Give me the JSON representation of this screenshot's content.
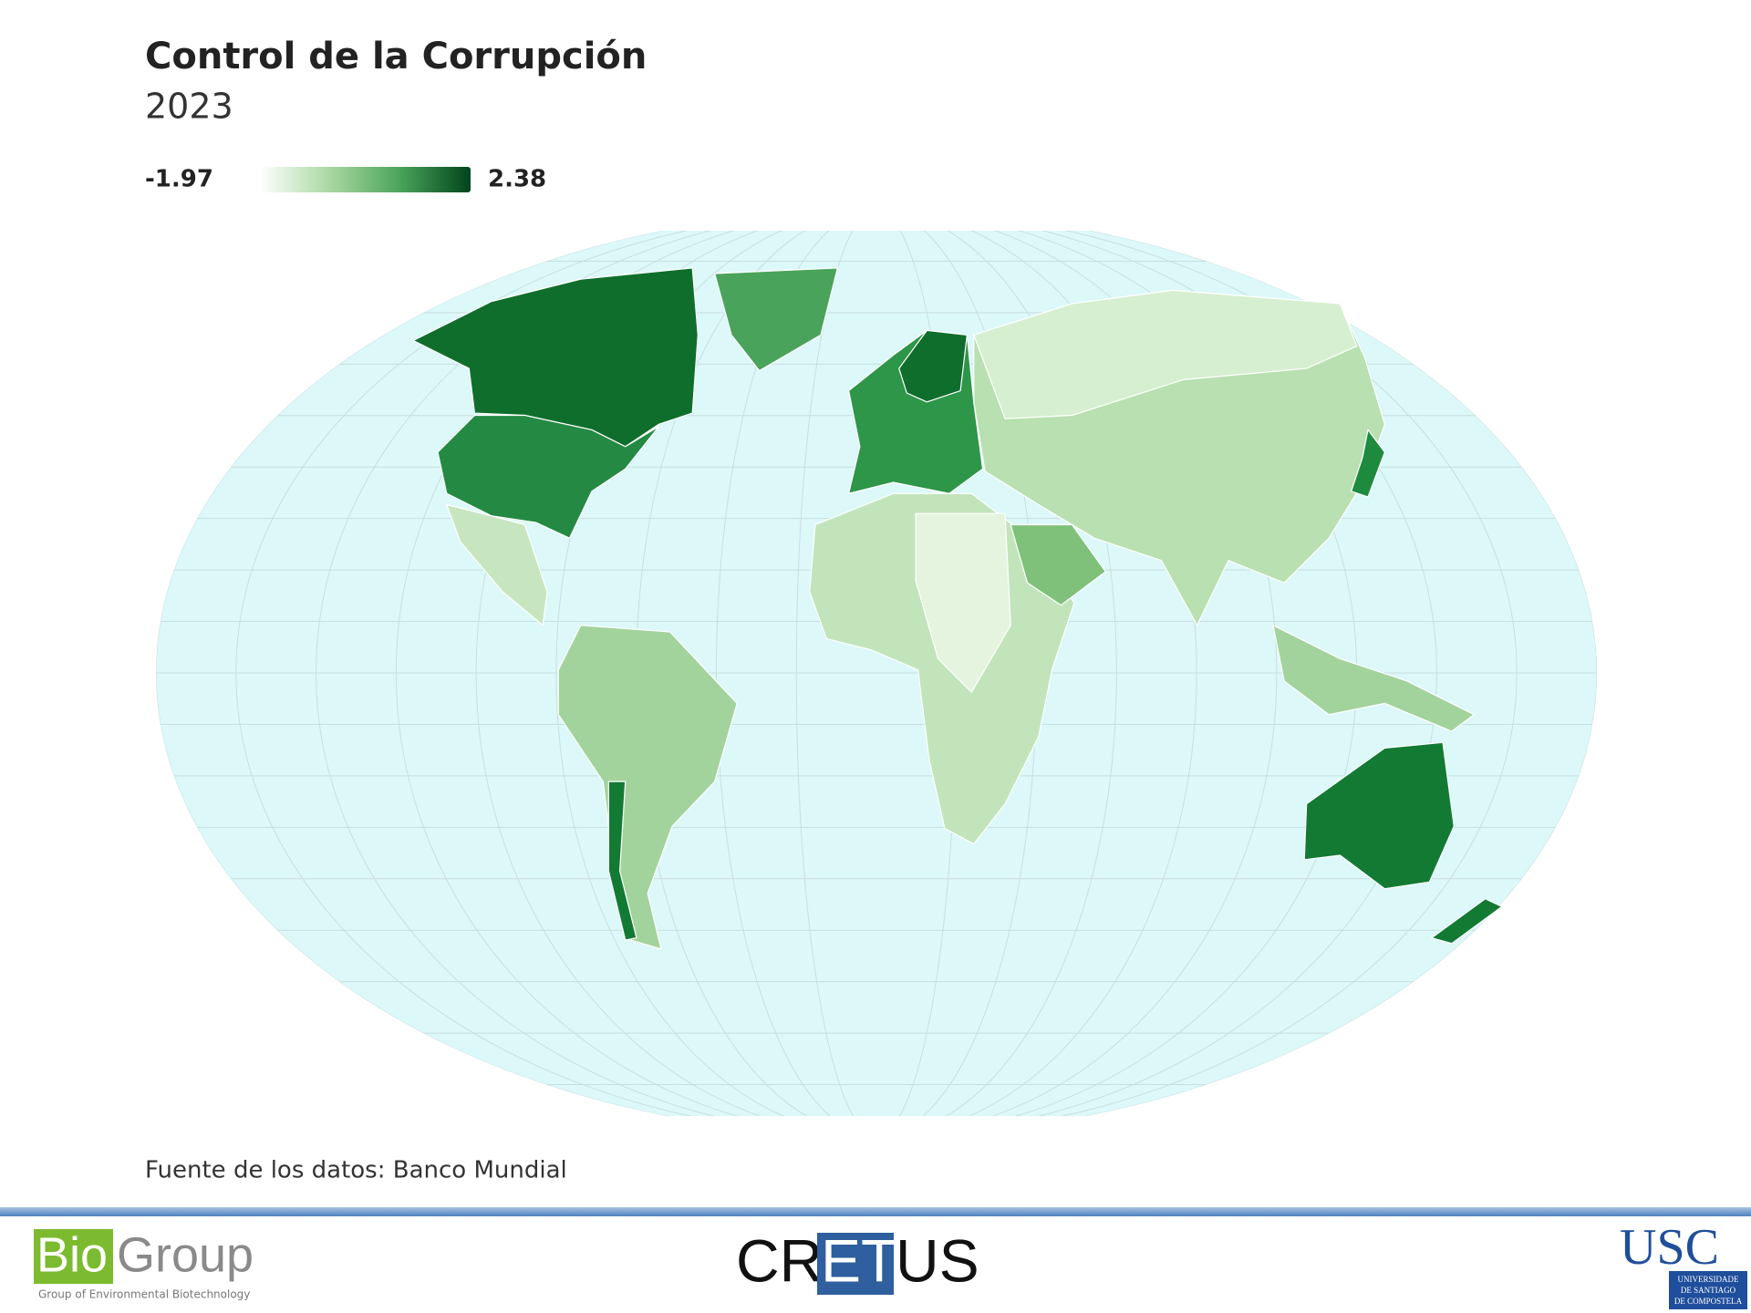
{
  "header": {
    "title": "Control de la Corrupción",
    "subtitle": "2023"
  },
  "legend": {
    "min": -1.97,
    "max": 2.38,
    "colors": [
      "#ffffff",
      "#a8d8a0",
      "#4aa35a",
      "#00441b"
    ]
  },
  "source": "Fuente de los datos: Banco Mundial",
  "footer": {
    "biogroup": {
      "bio": "Bio",
      "group": "Group",
      "tagline": "Group of Environmental Biotechnology"
    },
    "cretus": {
      "a": "CR",
      "b": "ET",
      "c": "US"
    },
    "usc": {
      "name": "USC",
      "line1": "UNIVERSIDADE",
      "line2": "DE SANTIAGO",
      "line3": "DE COMPOSTELA"
    }
  }
}
